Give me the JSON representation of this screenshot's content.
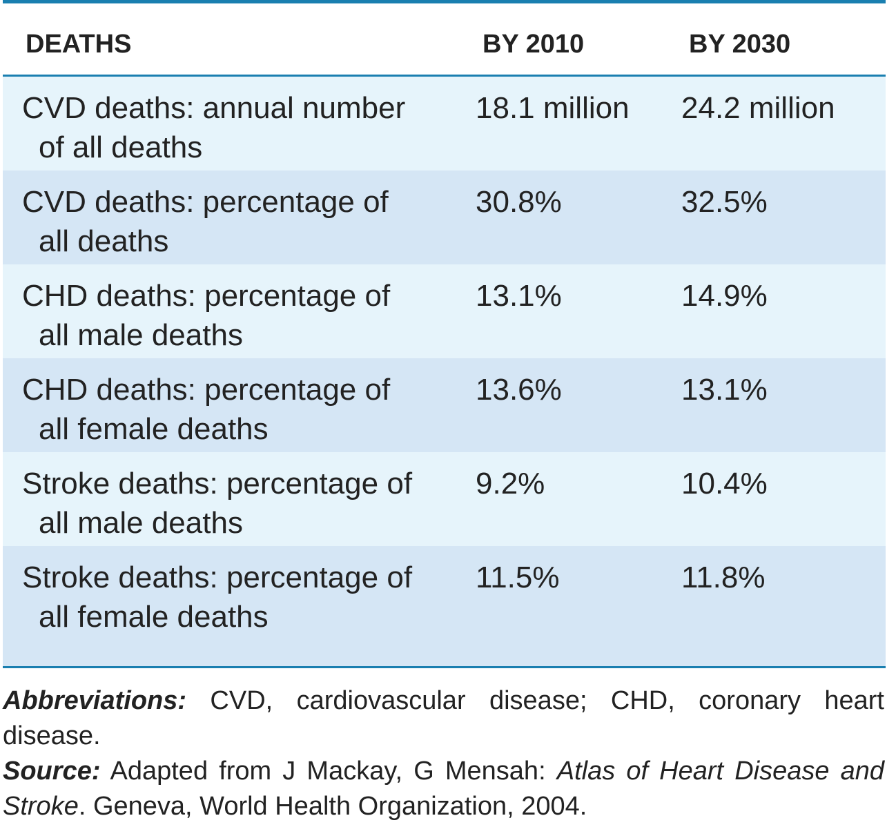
{
  "table": {
    "headers": {
      "deaths": "DEATHS",
      "y2010": "BY 2010",
      "y2030": "BY 2030"
    },
    "rows": [
      {
        "label_line1": "CVD deaths: annual number",
        "label_line2": "of all deaths",
        "y2010": "18.1 million",
        "y2030": "24.2 million"
      },
      {
        "label_line1": "CVD deaths: percentage of",
        "label_line2": "all deaths",
        "y2010": "30.8%",
        "y2030": "32.5%"
      },
      {
        "label_line1": "CHD deaths: percentage of",
        "label_line2": "all male deaths",
        "y2010": "13.1%",
        "y2030": "14.9%"
      },
      {
        "label_line1": "CHD deaths: percentage of",
        "label_line2": "all female deaths",
        "y2010": "13.6%",
        "y2030": "13.1%"
      },
      {
        "label_line1": "Stroke deaths: percentage of",
        "label_line2": "all male deaths",
        "y2010": "9.2%",
        "y2030": "10.4%"
      },
      {
        "label_line1": "Stroke deaths: percentage of",
        "label_line2": "all female deaths",
        "y2010": "11.5%",
        "y2030": "11.8%"
      }
    ]
  },
  "notes": {
    "abbreviations_lead": "Abbreviations:",
    "abbreviations_text": " CVD, cardiovascular disease; CHD, coronary heart disease.",
    "source_lead": "Source:",
    "source_text_1": " Adapted from J Mackay, G Mensah: ",
    "source_title": "Atlas of Heart Disease and Stroke",
    "source_text_2": ". Geneva, World Health Organization, 2004."
  },
  "colors": {
    "rule": "#1a7fb0",
    "row_light": "#e6f4fb",
    "row_dark": "#d5e6f5"
  }
}
